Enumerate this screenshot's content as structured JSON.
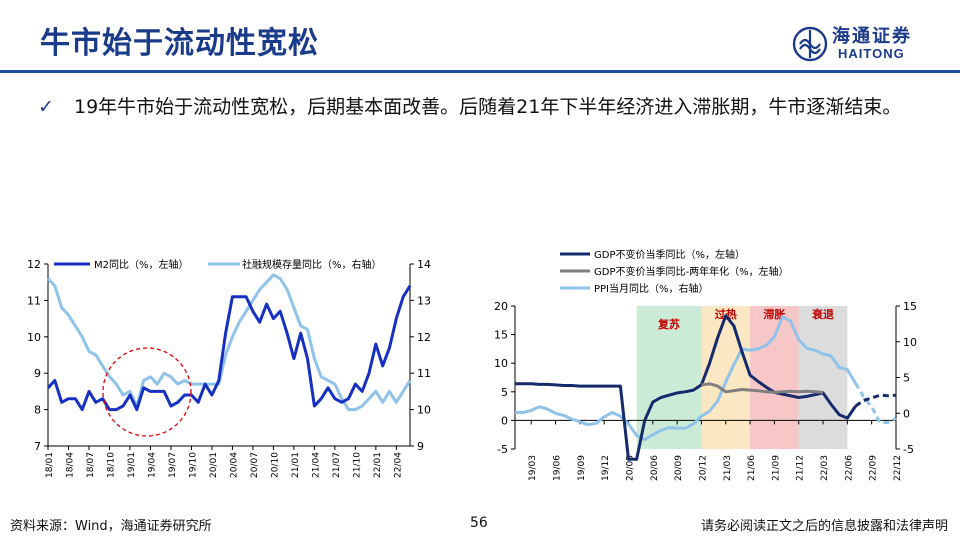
{
  "page_title": "牛市始于流动性宽松",
  "logo": {
    "cn": "海通证券",
    "en": "HAITONG"
  },
  "bullet": "19年牛市始于流动性宽松，后期基本面改善。后随着21年下半年经济进入滞胀期，牛市逐渐结束。",
  "footer": {
    "source": "资料来源：Wind，海通证券研究所",
    "page": "56",
    "disclaimer": "请务必阅读正文之后的信息披露和法律声明"
  },
  "chart_data": [
    {
      "type": "line",
      "title": "",
      "annotation": "dashed red circle around 2019 low region",
      "x_ticks": [
        "18/01",
        "18/04",
        "18/07",
        "18/10",
        "19/01",
        "19/04",
        "19/07",
        "19/10",
        "20/01",
        "20/04",
        "20/07",
        "20/10",
        "21/01",
        "21/04",
        "21/07",
        "21/10",
        "22/01",
        "22/04"
      ],
      "x": [
        "18/01",
        "18/02",
        "18/03",
        "18/04",
        "18/05",
        "18/06",
        "18/07",
        "18/08",
        "18/09",
        "18/10",
        "18/11",
        "18/12",
        "19/01",
        "19/02",
        "19/03",
        "19/04",
        "19/05",
        "19/06",
        "19/07",
        "19/08",
        "19/09",
        "19/10",
        "19/11",
        "19/12",
        "20/01",
        "20/02",
        "20/03",
        "20/04",
        "20/05",
        "20/06",
        "20/07",
        "20/08",
        "20/09",
        "20/10",
        "20/11",
        "20/12",
        "21/01",
        "21/02",
        "21/03",
        "21/04",
        "21/05",
        "21/06",
        "21/07",
        "21/08",
        "21/09",
        "21/10",
        "21/11",
        "21/12",
        "22/01",
        "22/02",
        "22/03",
        "22/04",
        "22/05",
        "22/06"
      ],
      "left_axis": {
        "ylim": [
          7,
          12
        ],
        "ticks": [
          "7",
          "8",
          "9",
          "10",
          "11",
          "12"
        ]
      },
      "right_axis": {
        "ylim": [
          9,
          14
        ],
        "ticks": [
          "9",
          "10",
          "11",
          "12",
          "13",
          "14"
        ]
      },
      "series": [
        {
          "name": "M2同比（%，左轴）",
          "axis": "left",
          "color": "#1631c2",
          "values": [
            8.6,
            8.8,
            8.2,
            8.3,
            8.3,
            8.0,
            8.5,
            8.2,
            8.3,
            8.0,
            8.0,
            8.1,
            8.4,
            8.0,
            8.6,
            8.5,
            8.5,
            8.5,
            8.1,
            8.2,
            8.4,
            8.4,
            8.2,
            8.7,
            8.4,
            8.8,
            10.1,
            11.1,
            11.1,
            11.1,
            10.7,
            10.4,
            10.9,
            10.5,
            10.7,
            10.1,
            9.4,
            10.1,
            9.4,
            8.1,
            8.3,
            8.6,
            8.3,
            8.2,
            8.3,
            8.7,
            8.5,
            9.0,
            9.8,
            9.2,
            9.7,
            10.5,
            11.1,
            11.4
          ]
        },
        {
          "name": "社融规模存量同比（%，右轴）",
          "axis": "right",
          "color": "#8fc3ea",
          "values": [
            13.6,
            13.4,
            12.8,
            12.6,
            12.3,
            12.0,
            11.6,
            11.5,
            11.2,
            10.9,
            10.7,
            10.4,
            10.5,
            10.1,
            10.8,
            10.9,
            10.7,
            11.0,
            10.9,
            10.7,
            10.8,
            10.7,
            10.7,
            10.7,
            10.7,
            10.7,
            11.5,
            12.0,
            12.4,
            12.7,
            13.0,
            13.3,
            13.5,
            13.7,
            13.6,
            13.3,
            12.8,
            12.3,
            12.2,
            11.4,
            10.9,
            10.8,
            10.7,
            10.3,
            10.0,
            10.0,
            10.1,
            10.3,
            10.5,
            10.2,
            10.5,
            10.2,
            10.5,
            10.8
          ]
        }
      ]
    },
    {
      "type": "line",
      "title": "",
      "x_ticks": [
        "19/03",
        "19/06",
        "19/09",
        "19/12",
        "20/03",
        "20/06",
        "20/09",
        "20/12",
        "21/03",
        "21/06",
        "21/09",
        "21/12",
        "22/03",
        "22/06",
        "22/09",
        "22/12"
      ],
      "x": [
        "19/01",
        "19/02",
        "19/03",
        "19/04",
        "19/05",
        "19/06",
        "19/07",
        "19/08",
        "19/09",
        "19/10",
        "19/11",
        "19/12",
        "20/01",
        "20/02",
        "20/03",
        "20/04",
        "20/05",
        "20/06",
        "20/07",
        "20/08",
        "20/09",
        "20/10",
        "20/11",
        "20/12",
        "21/01",
        "21/02",
        "21/03",
        "21/04",
        "21/05",
        "21/06",
        "21/07",
        "21/08",
        "21/09",
        "21/10",
        "21/11",
        "21/12",
        "22/01",
        "22/02",
        "22/03",
        "22/04",
        "22/05",
        "22/06",
        "22/07",
        "22/08",
        "22/09",
        "22/10",
        "22/11",
        "22/12"
      ],
      "left_axis": {
        "ylim": [
          -5,
          20
        ],
        "ticks": [
          "-5",
          "0",
          "5",
          "10",
          "15",
          "20"
        ]
      },
      "right_axis": {
        "ylim": [
          -5,
          15
        ],
        "ticks": [
          "-5",
          "0",
          "5",
          "10",
          "15"
        ]
      },
      "phases": [
        {
          "label": "复苏",
          "from": "20/04",
          "to": "20/12",
          "color": "#cbebd6"
        },
        {
          "label": "过热",
          "from": "20/12",
          "to": "21/06",
          "color": "#fbe8c2"
        },
        {
          "label": "滞胀",
          "from": "21/06",
          "to": "21/12",
          "color": "#f7c6c6"
        },
        {
          "label": "衰退",
          "from": "21/12",
          "to": "22/06",
          "color": "#dcdcdc"
        }
      ],
      "series": [
        {
          "name": "GDP不变价当季同比（%，左轴）",
          "axis": "left",
          "color": "#152a6b",
          "values": [
            6.4,
            6.4,
            6.4,
            6.3,
            6.3,
            6.2,
            6.1,
            6.1,
            6.0,
            6.0,
            6.0,
            6.0,
            6.0,
            6.0,
            -6.8,
            -6.8,
            0.0,
            3.2,
            4.0,
            4.4,
            4.8,
            5.0,
            5.3,
            6.2,
            10.0,
            14.5,
            18.3,
            16.5,
            12.0,
            7.9,
            6.8,
            5.8,
            4.9,
            4.6,
            4.3,
            4.0,
            4.2,
            4.5,
            4.8,
            2.8,
            1.0,
            0.4,
            2.5,
            3.5,
            3.9,
            4.4,
            4.3,
            4.4
          ],
          "dashed_from": "22/07"
        },
        {
          "name": "GDP不变价当季同比-两年年化（%，左轴）",
          "axis": "left",
          "color": "#7f7f7f",
          "values": [
            null,
            null,
            null,
            null,
            null,
            null,
            null,
            null,
            null,
            null,
            null,
            null,
            null,
            null,
            null,
            null,
            null,
            null,
            null,
            null,
            null,
            null,
            null,
            6.2,
            6.4,
            6.0,
            5.0,
            5.2,
            5.4,
            5.3,
            5.2,
            5.0,
            4.9,
            5.0,
            5.1,
            5.0,
            5.1,
            5.0,
            4.9,
            null,
            null,
            null,
            null,
            null,
            null,
            null,
            null,
            null
          ]
        },
        {
          "name": "PPI当月同比（%，右轴）",
          "axis": "right",
          "color": "#8fc3ea",
          "values": [
            0.1,
            0.1,
            0.4,
            0.9,
            0.6,
            0.0,
            -0.3,
            -0.8,
            -1.2,
            -1.6,
            -1.4,
            -0.5,
            0.1,
            -0.4,
            -1.5,
            -3.1,
            -3.7,
            -3.0,
            -2.4,
            -2.0,
            -2.1,
            -2.1,
            -1.5,
            -0.4,
            0.3,
            1.7,
            4.4,
            6.8,
            9.0,
            8.8,
            9.0,
            9.5,
            10.7,
            13.5,
            12.9,
            10.3,
            9.1,
            8.8,
            8.3,
            8.0,
            6.4,
            6.1,
            4.2,
            2.3,
            0.9,
            -1.3,
            -1.3,
            -0.7
          ],
          "dashed_from": "22/07"
        }
      ]
    }
  ]
}
